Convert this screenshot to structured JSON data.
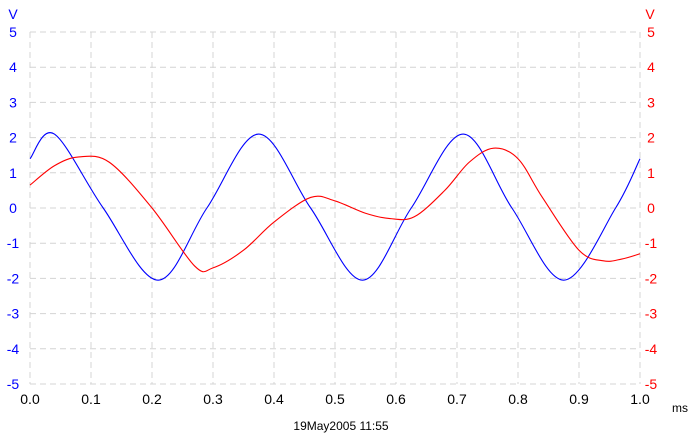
{
  "chart_data": {
    "type": "line",
    "xlabel": "ms",
    "y_unit_left": "V",
    "y_unit_right": "V",
    "xlim": [
      0,
      1.0
    ],
    "ylim_left": [
      -5,
      5
    ],
    "ylim_right": [
      -5,
      5
    ],
    "x_ticks": [
      "0.0",
      "0.1",
      "0.2",
      "0.3",
      "0.4",
      "0.5",
      "0.6",
      "0.7",
      "0.8",
      "0.9",
      "1.0"
    ],
    "y_ticks_left": [
      "5",
      "4",
      "3",
      "2",
      "1",
      "0",
      "-1",
      "-2",
      "-3",
      "-4",
      "-5"
    ],
    "y_ticks_right": [
      "5",
      "4",
      "3",
      "2",
      "1",
      "0",
      "-1",
      "-2",
      "-3",
      "-4",
      "-5"
    ],
    "grid": true,
    "timestamp": "19May2005  11:55",
    "series": [
      {
        "axis": "left",
        "color": "#0000ff",
        "x": [
          0.0,
          0.04,
          0.12,
          0.21,
          0.29,
          0.375,
          0.46,
          0.545,
          0.625,
          0.71,
          0.79,
          0.875,
          0.96,
          1.0
        ],
        "values": [
          1.4,
          2.1,
          0.0,
          -2.05,
          0.0,
          2.1,
          0.0,
          -2.05,
          0.0,
          2.1,
          0.0,
          -2.05,
          0.0,
          1.4
        ]
      },
      {
        "axis": "right",
        "color": "#ff0000",
        "x": [
          0.0,
          0.04,
          0.08,
          0.13,
          0.2,
          0.27,
          0.3,
          0.35,
          0.4,
          0.46,
          0.5,
          0.55,
          0.59,
          0.63,
          0.68,
          0.72,
          0.76,
          0.8,
          0.84,
          0.9,
          0.94,
          0.97,
          1.0
        ],
        "values": [
          0.65,
          1.2,
          1.45,
          1.3,
          0.0,
          -1.65,
          -1.7,
          -1.2,
          -0.4,
          0.3,
          0.2,
          -0.15,
          -0.3,
          -0.25,
          0.5,
          1.3,
          1.7,
          1.4,
          0.3,
          -1.2,
          -1.5,
          -1.45,
          -1.3
        ]
      }
    ]
  }
}
